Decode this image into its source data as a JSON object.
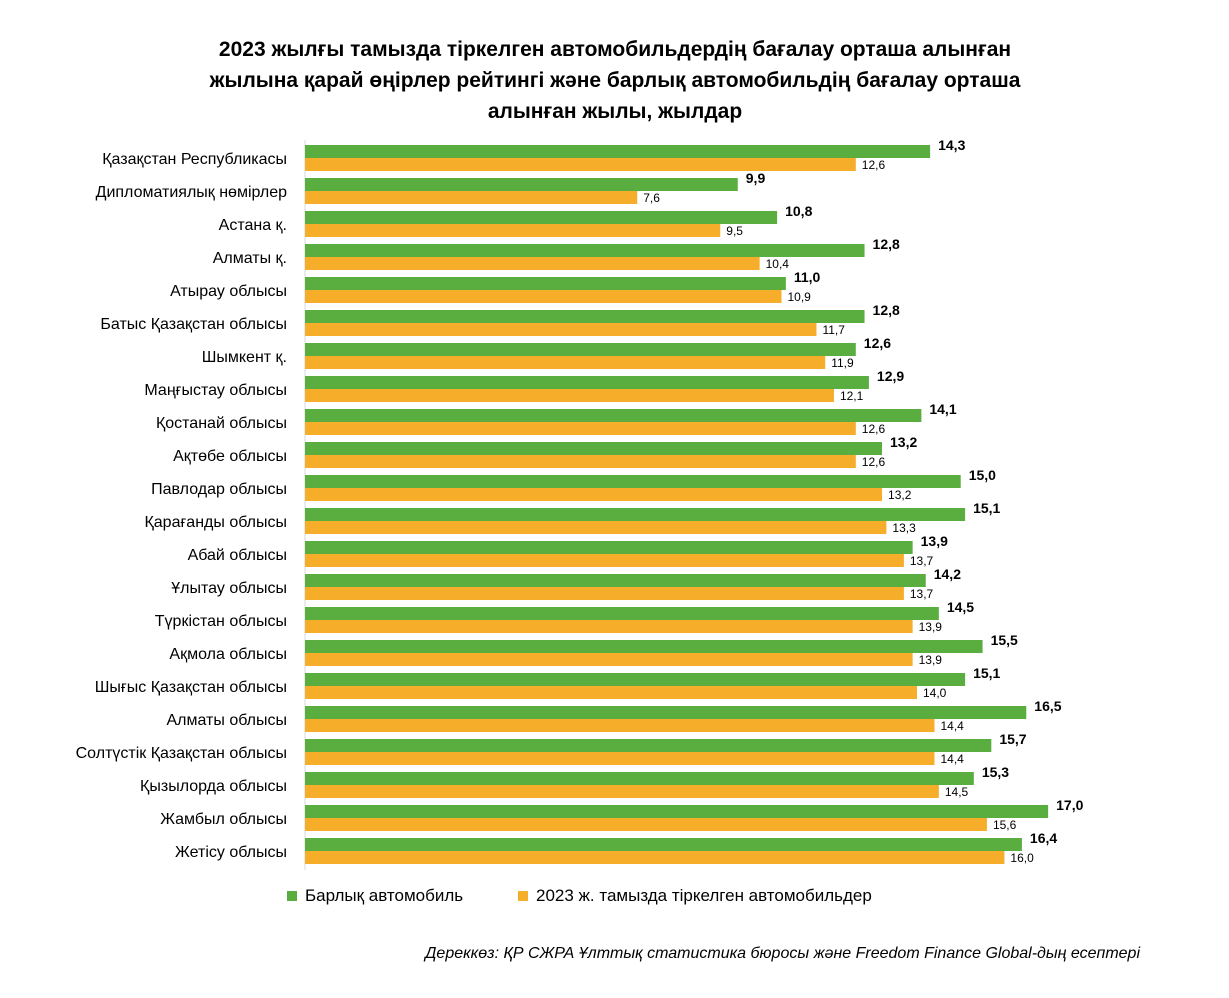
{
  "title_lines": [
    "2023 жылғы тамызда тіркелген автомобильдердің бағалау орташа алынған",
    "жылына қарай өңірлер рейтингі және барлық автомобильдің бағалау орташа",
    "алынған жылы, жылдар"
  ],
  "legend": {
    "all": "Барлық автомобиль",
    "registered": "2023 ж. тамызда тіркелген автомобильдер"
  },
  "source": "Дереккөз: ҚР СЖРА Ұлттық статистика бюросы және Freedom Finance Global-дың есептері",
  "colors": {
    "all": "#5aae3f",
    "registered": "#f5ad2a"
  },
  "chart_data": {
    "type": "bar",
    "orientation": "horizontal",
    "title": "2023 жылғы тамызда тіркелген автомобильдердің бағалау орташа алынған жылына қарай өңірлер рейтингі және барлық автомобильдің бағалау орташа алынған жылы, жылдар",
    "categories": [
      "Қазақстан Республикасы",
      "Дипломатиялық нөмірлер",
      "Астана қ.",
      "Алматы қ.",
      "Атырау облысы",
      "Батыс Қазақстан облысы",
      "Шымкент қ.",
      "Маңғыстау облысы",
      "Қостанай облысы",
      "Ақтөбе облысы",
      "Павлодар облысы",
      "Қарағанды облысы",
      "Абай облысы",
      "Ұлытау облысы",
      "Түркістан облысы",
      "Ақмола облысы",
      "Шығыс Қазақстан облысы",
      "Алматы облысы",
      "Солтүстік Қазақстан облысы",
      "Қызылорда облысы",
      "Жамбыл облысы",
      "Жетісу облысы"
    ],
    "series": [
      {
        "name": "Барлық автомобиль",
        "color": "#5aae3f",
        "values": [
          14.3,
          9.9,
          10.8,
          12.8,
          11.0,
          12.8,
          12.6,
          12.9,
          14.1,
          13.2,
          15.0,
          15.1,
          13.9,
          14.2,
          14.5,
          15.5,
          15.1,
          16.5,
          15.7,
          15.3,
          17.0,
          16.4
        ],
        "labels": [
          "14,3",
          "9,9",
          "10,8",
          "12,8",
          "11,0",
          "12,8",
          "12,6",
          "12,9",
          "14,1",
          "13,2",
          "15,0",
          "15,1",
          "13,9",
          "14,2",
          "14,5",
          "15,5",
          "15,1",
          "16,5",
          "15,7",
          "15,3",
          "17,0",
          "16,4"
        ]
      },
      {
        "name": "2023 ж. тамызда тіркелген автомобильдер",
        "color": "#f5ad2a",
        "values": [
          12.6,
          7.6,
          9.5,
          10.4,
          10.9,
          11.7,
          11.9,
          12.1,
          12.6,
          12.6,
          13.2,
          13.3,
          13.7,
          13.7,
          13.9,
          13.9,
          14.0,
          14.4,
          14.4,
          14.5,
          15.6,
          16.0
        ],
        "labels": [
          "12,6",
          "7,6",
          "9,5",
          "10,4",
          "10,9",
          "11,7",
          "11,9",
          "12,1",
          "12,6",
          "12,6",
          "13,2",
          "13,3",
          "13,7",
          "13,7",
          "13,9",
          "13,9",
          "14,0",
          "14,4",
          "14,4",
          "14,5",
          "15,6",
          "16,0"
        ]
      }
    ],
    "xlim": [
      0,
      17.5
    ],
    "grid": false,
    "legend_position": "bottom"
  }
}
